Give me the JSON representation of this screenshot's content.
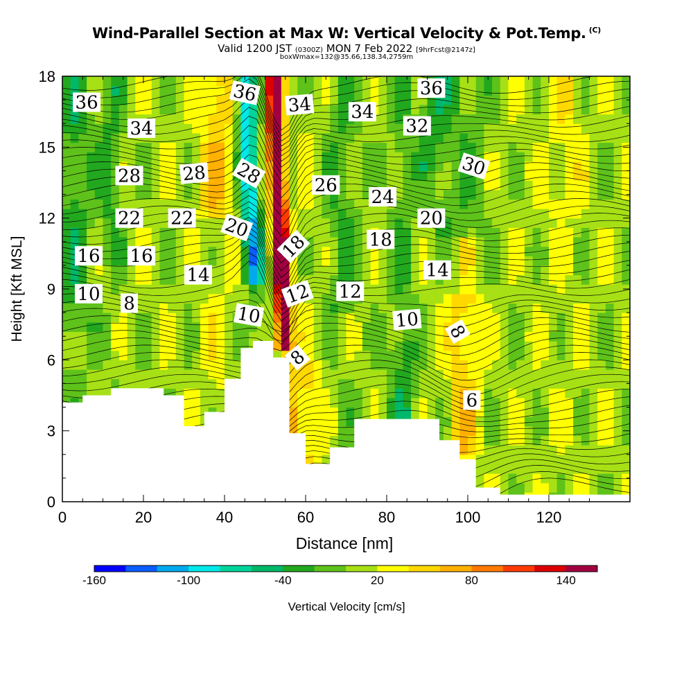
{
  "header": {
    "title": "Wind-Parallel Section at Max W: Vertical Velocity & Pot.Temp.",
    "copyright": "(C)",
    "subtitle_valid": "Valid 1200 JST",
    "subtitle_utc": "(0300Z)",
    "subtitle_date": "MON 7 Feb 2022",
    "subtitle_fcst": "[9hrFcst@2147z]",
    "boxinfo": "boxWmax=132@35.66,138.34,2759m"
  },
  "chart_data": {
    "type": "heatmap",
    "title": "Wind-Parallel Section at Max W: Vertical Velocity & Pot.Temp.",
    "xlabel": "Distance [nm]",
    "ylabel": "Height [Kft MSL]",
    "xlim": [
      0,
      140
    ],
    "ylim": [
      0,
      18
    ],
    "xticks": [
      0,
      20,
      40,
      60,
      80,
      100,
      120
    ],
    "yticks": [
      0,
      3,
      6,
      9,
      12,
      15,
      18
    ],
    "colorbar": {
      "label": "Vertical Velocity [cm/s]",
      "bounds": [
        -160,
        -140,
        -120,
        -100,
        -80,
        -60,
        -40,
        -20,
        0,
        20,
        40,
        60,
        80,
        100,
        120,
        140,
        160
      ],
      "tick_labels": [
        "-160",
        "-100",
        "-40",
        "20",
        "80",
        "140"
      ],
      "colors": [
        "#0000ff",
        "#0a5cff",
        "#00aaee",
        "#00e8e8",
        "#00d49a",
        "#00b86a",
        "#22a81e",
        "#5ec21a",
        "#a6e015",
        "#ffff00",
        "#ffd800",
        "#ffb000",
        "#ff7a00",
        "#ff3a00",
        "#dd0000",
        "#a10040"
      ]
    },
    "terrain_heights_kft": [
      [
        0,
        4.2
      ],
      [
        5,
        4.5
      ],
      [
        12,
        4.8
      ],
      [
        25,
        4.5
      ],
      [
        30,
        3.2
      ],
      [
        35,
        3.8
      ],
      [
        40,
        5.2
      ],
      [
        44,
        6.5
      ],
      [
        47,
        6.8
      ],
      [
        52,
        6.1
      ],
      [
        56,
        2.9
      ],
      [
        60,
        1.6
      ],
      [
        66,
        2.3
      ],
      [
        72,
        3.5
      ],
      [
        86,
        3.5
      ],
      [
        93,
        2.6
      ],
      [
        98,
        1.8
      ],
      [
        102,
        0.6
      ],
      [
        108,
        0.3
      ],
      [
        120,
        0.3
      ],
      [
        140,
        0.3
      ]
    ],
    "isentrope_labels": [
      {
        "text": "36",
        "x": 6,
        "y": 16.9,
        "rot": 0
      },
      {
        "text": "34",
        "x": 19.5,
        "y": 15.8,
        "rot": 0
      },
      {
        "text": "28",
        "x": 16.5,
        "y": 13.8,
        "rot": 0
      },
      {
        "text": "22",
        "x": 16.5,
        "y": 12.0,
        "rot": 0
      },
      {
        "text": "16",
        "x": 6.5,
        "y": 10.4,
        "rot": 0
      },
      {
        "text": "10",
        "x": 6.5,
        "y": 8.8,
        "rot": 0
      },
      {
        "text": "8",
        "x": 16.5,
        "y": 8.4,
        "rot": 0
      },
      {
        "text": "16",
        "x": 19.5,
        "y": 10.4,
        "rot": 0
      },
      {
        "text": "22",
        "x": 29.5,
        "y": 12.0,
        "rot": 0
      },
      {
        "text": "28",
        "x": 32.5,
        "y": 13.9,
        "rot": -5
      },
      {
        "text": "14",
        "x": 33.5,
        "y": 9.6,
        "rot": 0
      },
      {
        "text": "36",
        "x": 45,
        "y": 17.3,
        "rot": 12
      },
      {
        "text": "28",
        "x": 46,
        "y": 13.9,
        "rot": 30
      },
      {
        "text": "20",
        "x": 43,
        "y": 11.6,
        "rot": 20
      },
      {
        "text": "10",
        "x": 46,
        "y": 7.9,
        "rot": 10
      },
      {
        "text": "34",
        "x": 58.5,
        "y": 16.8,
        "rot": -5
      },
      {
        "text": "18",
        "x": 57,
        "y": 10.8,
        "rot": -45
      },
      {
        "text": "12",
        "x": 58,
        "y": 8.8,
        "rot": -20
      },
      {
        "text": "8",
        "x": 58,
        "y": 6.1,
        "rot": -40
      },
      {
        "text": "26",
        "x": 65,
        "y": 13.4,
        "rot": 0
      },
      {
        "text": "34",
        "x": 74,
        "y": 16.5,
        "rot": 0
      },
      {
        "text": "12",
        "x": 71,
        "y": 8.9,
        "rot": 0
      },
      {
        "text": "24",
        "x": 79,
        "y": 12.9,
        "rot": 0
      },
      {
        "text": "18",
        "x": 78.5,
        "y": 11.1,
        "rot": 0
      },
      {
        "text": "32",
        "x": 87.5,
        "y": 15.9,
        "rot": 0
      },
      {
        "text": "36",
        "x": 91,
        "y": 17.5,
        "rot": 0
      },
      {
        "text": "20",
        "x": 91,
        "y": 12.0,
        "rot": 0
      },
      {
        "text": "14",
        "x": 92.5,
        "y": 9.8,
        "rot": 0
      },
      {
        "text": "10",
        "x": 85,
        "y": 7.7,
        "rot": -5
      },
      {
        "text": "30",
        "x": 101.5,
        "y": 14.2,
        "rot": 18
      },
      {
        "text": "8",
        "x": 97.5,
        "y": 7.2,
        "rot": 60
      },
      {
        "text": "6",
        "x": 101,
        "y": 4.3,
        "rot": 0
      }
    ]
  }
}
